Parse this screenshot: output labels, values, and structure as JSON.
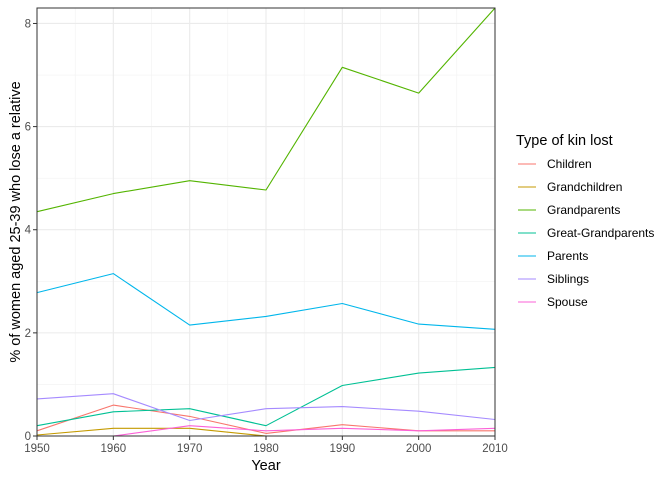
{
  "chart_data": {
    "type": "line",
    "title": "",
    "xlabel": "Year",
    "ylabel": "% of women aged 25-39 who lose a relative",
    "xlim": [
      1950,
      2010
    ],
    "ylim": [
      0,
      8.3
    ],
    "xticks": [
      1950,
      1960,
      1970,
      1980,
      1990,
      2000,
      2010
    ],
    "yticks": [
      0,
      2,
      4,
      6,
      8
    ],
    "grid": true,
    "legend": {
      "title": "Type of kin lost",
      "position": "right"
    },
    "x": [
      1950,
      1960,
      1970,
      1980,
      1990,
      2000,
      2010
    ],
    "series": [
      {
        "name": "Children",
        "color": "#F8766D",
        "values": [
          0.1,
          0.6,
          0.38,
          0.05,
          0.22,
          0.1,
          0.1
        ]
      },
      {
        "name": "Grandchildren",
        "color": "#C49A00",
        "values": [
          0.02,
          0.15,
          0.15,
          0.0,
          0.0,
          0.0,
          0.0
        ]
      },
      {
        "name": "Grandparents",
        "color": "#53B400",
        "values": [
          4.35,
          4.7,
          4.95,
          4.77,
          7.15,
          6.65,
          8.3
        ]
      },
      {
        "name": "Great-Grandparents",
        "color": "#00C094",
        "values": [
          0.2,
          0.47,
          0.53,
          0.2,
          0.98,
          1.22,
          1.33
        ]
      },
      {
        "name": "Parents",
        "color": "#00B6EB",
        "values": [
          2.78,
          3.15,
          2.15,
          2.32,
          2.57,
          2.17,
          2.07
        ]
      },
      {
        "name": "Siblings",
        "color": "#A58AFF",
        "values": [
          0.72,
          0.82,
          0.3,
          0.53,
          0.57,
          0.48,
          0.32
        ]
      },
      {
        "name": "Spouse",
        "color": "#FB61D7",
        "values": [
          0.0,
          0.0,
          0.2,
          0.1,
          0.15,
          0.1,
          0.15
        ]
      }
    ]
  }
}
